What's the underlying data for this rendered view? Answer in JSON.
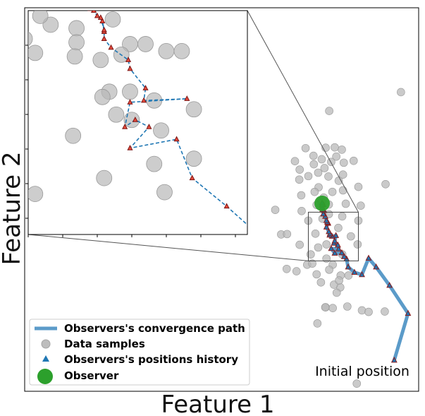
{
  "chart_data": {
    "type": "scatter",
    "xlabel": "Feature 1",
    "ylabel": "Feature 2",
    "x_ticks_shown": false,
    "y_ticks_shown": false,
    "grid": false,
    "xlim": [
      0,
      100
    ],
    "ylim": [
      0,
      100
    ],
    "legend": {
      "placement": "lower-left",
      "entries": [
        {
          "label": "Observers's convergence path",
          "marker": "line",
          "color": "#5b9bc9"
        },
        {
          "label": "Data samples",
          "marker": "circle",
          "color": "#bdbdbd"
        },
        {
          "label": "Observers's positions history",
          "marker": "triangle",
          "color": "#1f77b4"
        },
        {
          "label": "Observer",
          "marker": "big-circle",
          "color": "#2ca02c"
        }
      ]
    },
    "annotations": [
      {
        "text": "Initial position",
        "x": 88.0,
        "y": 5.0
      }
    ],
    "colors": {
      "samples": "#b8b8b8",
      "path": "#5b9bc9",
      "history_fill": "#1f77b4",
      "history_edge": "#8b1a1a",
      "observer": "#2ca02c",
      "inset_path": "#1f77b4",
      "inset_triangle": "#e74c3c"
    },
    "data_samples": [
      [
        95.5,
        78.0
      ],
      [
        77.3,
        73.1
      ],
      [
        71.3,
        63.4
      ],
      [
        76.4,
        63.5
      ],
      [
        80.5,
        63.0
      ],
      [
        78.7,
        63.6
      ],
      [
        73.3,
        61.4
      ],
      [
        79.1,
        61.2
      ],
      [
        75.4,
        60.5
      ],
      [
        76.1,
        58.2
      ],
      [
        73.4,
        59.2
      ],
      [
        77.8,
        59.8
      ],
      [
        81.0,
        59.6
      ],
      [
        68.6,
        60.0
      ],
      [
        83.5,
        60.1
      ],
      [
        74.5,
        57.0
      ],
      [
        69.8,
        57.8
      ],
      [
        72.0,
        56.1
      ],
      [
        77.1,
        56.0
      ],
      [
        80.8,
        56.5
      ],
      [
        79.7,
        54.9
      ],
      [
        69.7,
        55.2
      ],
      [
        74.6,
        53.2
      ],
      [
        91.6,
        54.0
      ],
      [
        73.6,
        52.0
      ],
      [
        78.1,
        52.0
      ],
      [
        80.8,
        52.4
      ],
      [
        84.7,
        53.3
      ],
      [
        75.9,
        50.5
      ],
      [
        70.2,
        51.1
      ],
      [
        75.3,
        49.5
      ],
      [
        74.1,
        48.6
      ],
      [
        77.2,
        48.7
      ],
      [
        81.5,
        48.9
      ],
      [
        85.3,
        48.4
      ],
      [
        63.6,
        47.3
      ],
      [
        70.3,
        47.0
      ],
      [
        77.2,
        46.2
      ],
      [
        72.0,
        44.5
      ],
      [
        75.6,
        45.0
      ],
      [
        80.6,
        45.6
      ],
      [
        84.7,
        44.5
      ],
      [
        65.1,
        40.9
      ],
      [
        66.6,
        41.0
      ],
      [
        73.8,
        41.1
      ],
      [
        79.6,
        42.6
      ],
      [
        82.8,
        40.4
      ],
      [
        69.8,
        38.2
      ],
      [
        74.5,
        37.5
      ],
      [
        76.6,
        38.3
      ],
      [
        84.5,
        38.3
      ],
      [
        72.6,
        35.7
      ],
      [
        76.6,
        34.6
      ],
      [
        80.6,
        35.7
      ],
      [
        71.7,
        33.0
      ],
      [
        78.2,
        33.0
      ],
      [
        82.2,
        30.2
      ],
      [
        80.2,
        30.2
      ],
      [
        80.1,
        27.1
      ],
      [
        79.2,
        25.7
      ],
      [
        78.5,
        27.8
      ],
      [
        73.0,
        33.3
      ],
      [
        69.0,
        31.3
      ],
      [
        74.1,
        30.5
      ],
      [
        77.3,
        31.7
      ],
      [
        75.2,
        28.4
      ],
      [
        79.8,
        28.9
      ],
      [
        81.9,
        22.1
      ],
      [
        76.4,
        21.9
      ],
      [
        78.2,
        21.7
      ],
      [
        85.6,
        21.1
      ],
      [
        87.3,
        20.7
      ],
      [
        91.4,
        20.8
      ],
      [
        74.3,
        17.7
      ],
      [
        84.3,
        2.0
      ],
      [
        76.3,
        21.9
      ],
      [
        66.5,
        31.9
      ]
    ],
    "convergence_path": [
      [
        93.8,
        8.1
      ],
      [
        97.3,
        20.3
      ],
      [
        92.6,
        27.6
      ],
      [
        89.2,
        32.4
      ],
      [
        87.3,
        34.7
      ],
      [
        85.6,
        30.4
      ],
      [
        83.7,
        31.0
      ],
      [
        82.1,
        32.4
      ],
      [
        81.7,
        34.5
      ],
      [
        81.1,
        35.1
      ],
      [
        80.5,
        36.1
      ],
      [
        78.7,
        36.0
      ],
      [
        77.8,
        37.2
      ],
      [
        79.7,
        37.1
      ],
      [
        79.5,
        38.1
      ],
      [
        78.5,
        38.6
      ],
      [
        78.7,
        39.2
      ],
      [
        79.0,
        40.6
      ],
      [
        78.0,
        40.4
      ],
      [
        77.4,
        40.7
      ],
      [
        77.5,
        41.1
      ],
      [
        77.2,
        41.6
      ],
      [
        76.6,
        42.8
      ],
      [
        77.0,
        43.8
      ],
      [
        77.0,
        43.9
      ],
      [
        76.8,
        44.1
      ],
      [
        76.6,
        44.5
      ],
      [
        76.3,
        45.6
      ],
      [
        75.8,
        46.2
      ],
      [
        76.0,
        47.1
      ],
      [
        75.6,
        47.4
      ],
      [
        75.5,
        47.9
      ],
      [
        75.6,
        48.6
      ],
      [
        75.8,
        48.7
      ],
      [
        75.5,
        48.6
      ],
      [
        75.5,
        49.1
      ]
    ],
    "observer": [
      75.5,
      49.0
    ],
    "inset": {
      "source_window": {
        "xlim": [
          72.0,
          84.7
        ],
        "ylim": [
          34.0,
          46.7
        ]
      },
      "tick_marks_only": true,
      "path": [
        [
          85.1,
          34.2
        ],
        [
          83.5,
          35.6
        ],
        [
          81.5,
          37.2
        ],
        [
          80.6,
          39.4
        ],
        [
          77.9,
          38.9
        ],
        [
          79.0,
          40.1
        ],
        [
          78.2,
          40.5
        ],
        [
          77.6,
          40.1
        ],
        [
          77.9,
          41.5
        ],
        [
          81.2,
          41.7
        ],
        [
          78.7,
          41.6
        ],
        [
          78.8,
          42.3
        ],
        [
          77.9,
          43.4
        ],
        [
          77.8,
          43.9
        ],
        [
          76.8,
          44.6
        ],
        [
          76.4,
          45.1
        ],
        [
          76.4,
          45.5
        ],
        [
          76.3,
          46.1
        ],
        [
          76.4,
          45.6
        ],
        [
          76.2,
          46.3
        ],
        [
          76.0,
          46.4
        ],
        [
          75.8,
          46.7
        ],
        [
          75.6,
          46.8
        ],
        [
          75.5,
          47.0
        ],
        [
          75.5,
          47.4
        ],
        [
          75.4,
          47.9
        ],
        [
          75.4,
          48.4
        ],
        [
          75.5,
          48.5
        ],
        [
          75.4,
          48.7
        ],
        [
          75.4,
          48.9
        ]
      ],
      "samples": [
        [
          71.8,
          45.1
        ],
        [
          74.7,
          51.2
        ],
        [
          71.4,
          50.7
        ],
        [
          73.3,
          45.9
        ],
        [
          74.8,
          45.7
        ],
        [
          72.4,
          44.3
        ],
        [
          72.7,
          46.4
        ],
        [
          74.3,
          48.6
        ],
        [
          74.8,
          44.9
        ],
        [
          74.7,
          44.1
        ],
        [
          76.4,
          48.9
        ],
        [
          76.8,
          48.5
        ],
        [
          76.6,
          47.8
        ],
        [
          77.1,
          47.8
        ],
        [
          76.9,
          46.2
        ],
        [
          77.9,
          44.8
        ],
        [
          78.8,
          44.8
        ],
        [
          80.0,
          44.4
        ],
        [
          80.9,
          44.4
        ],
        [
          77.4,
          44.2
        ],
        [
          76.2,
          43.9
        ],
        [
          76.7,
          42.1
        ],
        [
          77.9,
          42.1
        ],
        [
          76.3,
          41.8
        ],
        [
          79.3,
          41.6
        ],
        [
          77.1,
          40.8
        ],
        [
          78.0,
          40.5
        ],
        [
          79.7,
          39.9
        ],
        [
          81.6,
          38.3
        ],
        [
          79.9,
          36.4
        ],
        [
          76.4,
          37.2
        ],
        [
          72.4,
          36.3
        ],
        [
          79.3,
          38.0
        ],
        [
          81.6,
          41.1
        ],
        [
          74.6,
          39.6
        ]
      ]
    }
  }
}
